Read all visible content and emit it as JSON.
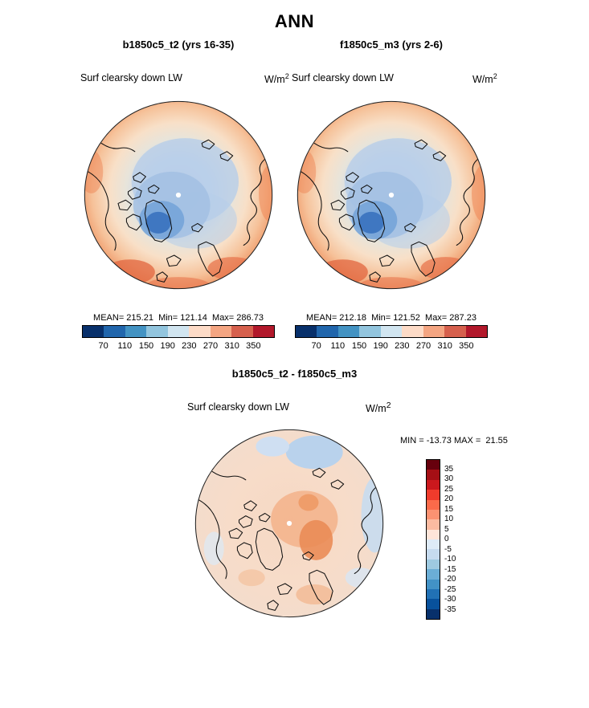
{
  "page_title": "ANN",
  "panels": [
    {
      "title": "b1850c5_t2 (yrs 16-35)",
      "field_label": "Surf clearsky down LW",
      "units_base": "W/m",
      "units_exp": "2",
      "stats": "MEAN= 215.21  Min= 121.14  Max= 286.73",
      "ticks": [
        "70",
        "110",
        "150",
        "190",
        "230",
        "270",
        "310",
        "350"
      ]
    },
    {
      "title": "f1850c5_m3 (yrs 2-6)",
      "field_label": "Surf clearsky down LW",
      "units_base": "W/m",
      "units_exp": "2",
      "stats": "MEAN= 212.18  Min= 121.52  Max= 287.23",
      "ticks": [
        "70",
        "110",
        "150",
        "190",
        "230",
        "270",
        "310",
        "350"
      ]
    }
  ],
  "diff": {
    "title": "b1850c5_t2 - f1850c5_m3",
    "field_label": "Surf clearsky down LW",
    "units_base": "W/m",
    "units_exp": "2",
    "stats": "MIN = -13.73 MAX =  21.55",
    "labels": [
      "35",
      "30",
      "25",
      "20",
      "15",
      "10",
      "5",
      "0",
      "-5",
      "-10",
      "-15",
      "-20",
      "-25",
      "-30",
      "-35"
    ]
  },
  "scales": {
    "main_colors": [
      "#08306b",
      "#2166ac",
      "#4393c3",
      "#92c5de",
      "#d1e5f0",
      "#fddbc7",
      "#f4a582",
      "#d6604d",
      "#b2182b"
    ],
    "diff_colors": [
      "#67000d",
      "#a50f15",
      "#cb181d",
      "#ef3b2c",
      "#fb6a4a",
      "#fc9272",
      "#fcbba1",
      "#fee5d9",
      "#deebf7",
      "#c6dbef",
      "#9ecae1",
      "#6baed6",
      "#4292c6",
      "#2171b5",
      "#08519c",
      "#08306b"
    ]
  },
  "chart_data": [
    {
      "type": "heatmap",
      "subtype": "polar-stereographic-map",
      "season": "ANN",
      "title": "b1850c5_t2 (yrs 16-35)",
      "variable": "Surf clearsky down LW",
      "units": "W/m^2",
      "mean": 215.21,
      "min": 121.14,
      "max": 286.73,
      "contour_levels": [
        70,
        110,
        150,
        190,
        230,
        270,
        310,
        350
      ],
      "colormap": "blue-to-red",
      "legend_position": "bottom"
    },
    {
      "type": "heatmap",
      "subtype": "polar-stereographic-map",
      "season": "ANN",
      "title": "f1850c5_m3 (yrs 2-6)",
      "variable": "Surf clearsky down LW",
      "units": "W/m^2",
      "mean": 212.18,
      "min": 121.52,
      "max": 287.23,
      "contour_levels": [
        70,
        110,
        150,
        190,
        230,
        270,
        310,
        350
      ],
      "colormap": "blue-to-red",
      "legend_position": "bottom"
    },
    {
      "type": "heatmap",
      "subtype": "polar-stereographic-map",
      "season": "ANN",
      "title": "b1850c5_t2 - f1850c5_m3",
      "variable": "Surf clearsky down LW",
      "units": "W/m^2",
      "min": -13.73,
      "max": 21.55,
      "contour_levels": [
        -35,
        -30,
        -25,
        -20,
        -15,
        -10,
        -5,
        0,
        5,
        10,
        15,
        20,
        25,
        30,
        35
      ],
      "colormap": "blue-to-red",
      "legend_position": "right"
    }
  ]
}
